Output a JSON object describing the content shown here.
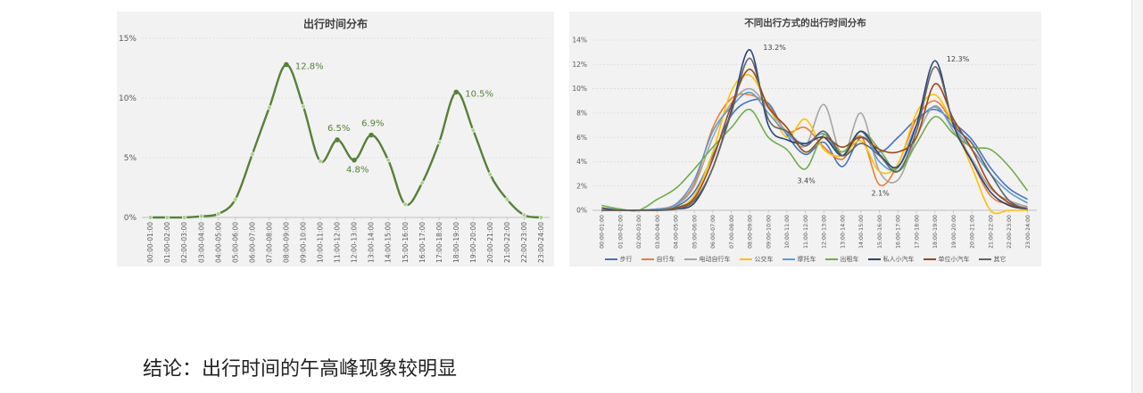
{
  "conclusion": "结论：出行时间的午高峰现象较明显",
  "chart_data": [
    {
      "type": "line",
      "title": "出行时间分布",
      "categories": [
        "00:00-01:00",
        "01:00-02:00",
        "02:00-03:00",
        "03:00-04:00",
        "04:00-05:00",
        "05:00-06:00",
        "06:00-07:00",
        "07:00-08:00",
        "08:00-09:00",
        "09:00-10:00",
        "10:00-11:00",
        "11:00-12:00",
        "12:00-13:00",
        "13:00-14:00",
        "14:00-15:00",
        "15:00-16:00",
        "16:00-17:00",
        "17:00-18:00",
        "18:00-19:00",
        "19:00-20:00",
        "20:00-21:00",
        "21:00-22:00",
        "22:00-23:00",
        "23:00-24:00"
      ],
      "y_ticks": [
        "0%",
        "5%",
        "10%",
        "15%"
      ],
      "ylim": [
        0,
        15
      ],
      "grid": true,
      "colors": {
        "line": "#548235",
        "marker": "#a9d18e",
        "highlight": "#548235"
      },
      "series": [
        {
          "values": [
            0.0,
            0.0,
            0.0,
            0.1,
            0.3,
            1.5,
            5.3,
            9.2,
            12.8,
            9.3,
            4.7,
            6.5,
            4.8,
            6.9,
            4.8,
            1.1,
            2.9,
            6.3,
            10.5,
            7.3,
            3.6,
            1.5,
            0.2,
            0.0
          ]
        }
      ],
      "annotations": [
        {
          "x": "08:00-09:00",
          "y": 12.8,
          "text": "12.8%"
        },
        {
          "x": "11:00-12:00",
          "y": 6.5,
          "text": "6.5%"
        },
        {
          "x": "12:00-13:00",
          "y": 4.8,
          "text": "4.8%"
        },
        {
          "x": "13:00-14:00",
          "y": 6.9,
          "text": "6.9%"
        },
        {
          "x": "18:00-19:00",
          "y": 10.5,
          "text": "10.5%"
        }
      ]
    },
    {
      "type": "line",
      "title": "不同出行方式的出行时间分布",
      "categories": [
        "00:00-01:00",
        "01:00-02:00",
        "02:00-03:00",
        "03:00-04:00",
        "04:00-05:00",
        "05:00-06:00",
        "06:00-07:00",
        "07:00-08:00",
        "08:00-09:00",
        "09:00-10:00",
        "10:00-11:00",
        "11:00-12:00",
        "12:00-13:00",
        "13:00-14:00",
        "14:00-15:00",
        "15:00-16:00",
        "16:00-17:00",
        "17:00-18:00",
        "18:00-19:00",
        "19:00-20:00",
        "20:00-21:00",
        "21:00-22:00",
        "22:00-23:00",
        "23:00-24:00"
      ],
      "y_ticks": [
        "0%",
        "2%",
        "4%",
        "6%",
        "8%",
        "10%",
        "12%",
        "14%"
      ],
      "ylim": [
        0,
        14
      ],
      "grid": true,
      "legend": "bottom",
      "series": [
        {
          "name": "步行",
          "color": "#4472c4",
          "values": [
            0.1,
            0.0,
            0.0,
            0.1,
            0.3,
            1.5,
            4.5,
            7.8,
            9.0,
            8.8,
            6.2,
            4.6,
            5.6,
            3.6,
            6.0,
            4.8,
            6.0,
            7.5,
            8.3,
            7.2,
            5.8,
            3.5,
            1.8,
            0.9
          ]
        },
        {
          "name": "自行车",
          "color": "#ed7d31",
          "values": [
            0.0,
            0.0,
            0.0,
            0.1,
            0.5,
            2.2,
            6.8,
            9.2,
            9.5,
            8.6,
            6.5,
            6.8,
            5.2,
            4.2,
            6.1,
            2.1,
            3.8,
            7.5,
            9.0,
            7.0,
            4.0,
            1.2,
            0.5,
            0.2
          ]
        },
        {
          "name": "电动自行车",
          "color": "#a5a5a5",
          "values": [
            0.0,
            0.0,
            0.0,
            0.1,
            0.4,
            2.0,
            6.0,
            8.8,
            10.0,
            8.4,
            6.4,
            5.3,
            8.7,
            4.5,
            8.0,
            3.2,
            2.5,
            6.0,
            8.6,
            6.5,
            4.2,
            1.8,
            0.8,
            0.3
          ]
        },
        {
          "name": "公交车",
          "color": "#ffc000",
          "values": [
            0.1,
            0.0,
            0.0,
            0.0,
            0.2,
            1.2,
            4.8,
            9.8,
            11.1,
            8.6,
            6.0,
            7.5,
            5.0,
            4.5,
            5.7,
            3.2,
            3.8,
            8.0,
            9.5,
            7.0,
            3.5,
            0.0,
            0.0,
            0.0
          ]
        },
        {
          "name": "摩托车",
          "color": "#5b9bd5",
          "values": [
            0.0,
            0.0,
            0.0,
            0.1,
            0.5,
            2.5,
            6.5,
            8.5,
            9.7,
            8.0,
            6.3,
            5.5,
            6.3,
            4.5,
            6.5,
            4.0,
            3.5,
            7.0,
            8.5,
            6.8,
            5.0,
            3.0,
            1.5,
            0.6
          ]
        },
        {
          "name": "出租车",
          "color": "#70ad47",
          "values": [
            0.4,
            0.1,
            0.0,
            0.9,
            1.8,
            3.4,
            5.2,
            6.8,
            8.3,
            6.0,
            5.0,
            3.4,
            6.2,
            4.8,
            6.5,
            5.0,
            3.2,
            5.5,
            7.7,
            6.3,
            5.2,
            5.0,
            3.6,
            1.6
          ]
        },
        {
          "name": "私人小汽车",
          "color": "#264478",
          "values": [
            0.2,
            0.0,
            0.0,
            0.0,
            0.1,
            0.6,
            3.5,
            8.2,
            13.2,
            7.0,
            5.8,
            5.5,
            6.0,
            4.5,
            6.5,
            4.6,
            3.6,
            7.0,
            12.3,
            7.0,
            4.0,
            1.5,
            0.4,
            0.1
          ]
        },
        {
          "name": "单位小汽车",
          "color": "#9e480e",
          "values": [
            0.0,
            0.0,
            0.0,
            0.0,
            0.2,
            1.0,
            4.2,
            8.6,
            11.6,
            8.5,
            6.8,
            4.8,
            6.0,
            5.2,
            6.0,
            5.0,
            4.8,
            6.0,
            10.4,
            7.5,
            5.0,
            2.0,
            0.6,
            0.1
          ]
        },
        {
          "name": "其它",
          "color": "#636363",
          "values": [
            0.0,
            0.0,
            0.0,
            0.0,
            0.1,
            0.8,
            3.5,
            8.0,
            12.5,
            7.5,
            6.5,
            5.3,
            6.5,
            4.5,
            5.5,
            4.5,
            3.2,
            6.5,
            11.8,
            7.2,
            5.5,
            3.0,
            0.8,
            0.1
          ]
        }
      ],
      "annotations": [
        {
          "x": "08:00-09:00",
          "y": 13.2,
          "text": "13.2%"
        },
        {
          "x": "11:00-12:00",
          "y": 3.4,
          "text": "3.4%"
        },
        {
          "x": "15:00-16:00",
          "y": 2.1,
          "text": "2.1%"
        },
        {
          "x": "18:00-19:00",
          "y": 12.3,
          "text": "12.3%"
        }
      ]
    }
  ]
}
